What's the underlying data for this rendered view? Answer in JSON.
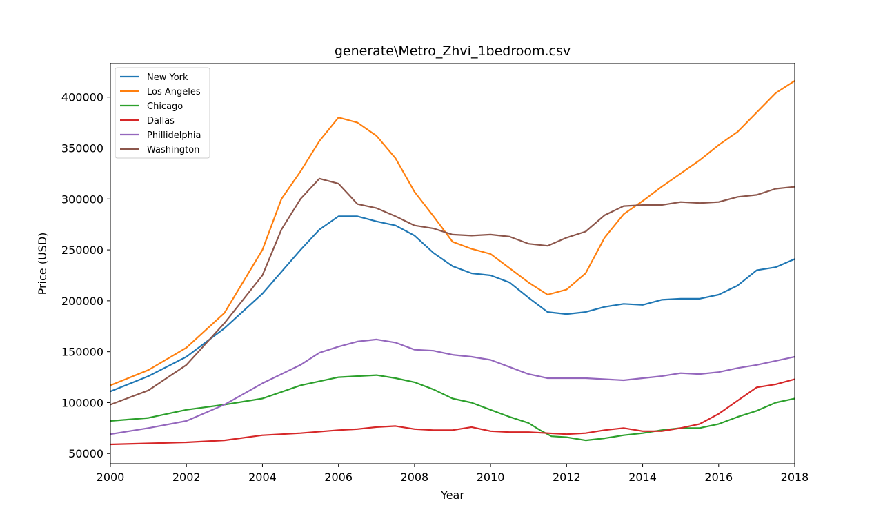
{
  "chart_data": {
    "type": "line",
    "title": "generate\\Metro_Zhvi_1bedroom.csv",
    "xlabel": "Year",
    "ylabel": "Price (USD)",
    "xlim": [
      2000,
      2018
    ],
    "ylim": [
      40000,
      433000
    ],
    "xticks": [
      "2000",
      "2002",
      "2004",
      "2006",
      "2008",
      "2010",
      "2012",
      "2014",
      "2016",
      "2018"
    ],
    "yticks": [
      "50000",
      "100000",
      "150000",
      "200000",
      "250000",
      "300000",
      "350000",
      "400000"
    ],
    "grid": false,
    "legend_position": "upper-left",
    "series": [
      {
        "name": "New York",
        "color": "#1f77b4",
        "points": [
          [
            2000,
            111000
          ],
          [
            2001,
            126000
          ],
          [
            2002,
            145000
          ],
          [
            2003,
            173000
          ],
          [
            2004,
            207000
          ],
          [
            2005,
            250000
          ],
          [
            2005.5,
            270000
          ],
          [
            2006,
            283000
          ],
          [
            2006.5,
            283000
          ],
          [
            2007,
            278000
          ],
          [
            2007.5,
            274000
          ],
          [
            2008,
            264000
          ],
          [
            2008.5,
            247000
          ],
          [
            2009,
            234000
          ],
          [
            2009.5,
            227000
          ],
          [
            2010,
            225000
          ],
          [
            2010.5,
            218000
          ],
          [
            2011,
            203000
          ],
          [
            2011.5,
            189000
          ],
          [
            2012,
            187000
          ],
          [
            2012.5,
            189000
          ],
          [
            2013,
            194000
          ],
          [
            2013.5,
            197000
          ],
          [
            2014,
            196000
          ],
          [
            2014.5,
            201000
          ],
          [
            2015,
            202000
          ],
          [
            2015.5,
            202000
          ],
          [
            2016,
            206000
          ],
          [
            2016.5,
            215000
          ],
          [
            2017,
            230000
          ],
          [
            2017.5,
            233000
          ],
          [
            2018,
            241000
          ]
        ]
      },
      {
        "name": "Los Angeles",
        "color": "#ff7f0e",
        "points": [
          [
            2000,
            117000
          ],
          [
            2001,
            132000
          ],
          [
            2002,
            154000
          ],
          [
            2003,
            188000
          ],
          [
            2004,
            250000
          ],
          [
            2004.5,
            300000
          ],
          [
            2005,
            327000
          ],
          [
            2005.5,
            357000
          ],
          [
            2006,
            380000
          ],
          [
            2006.5,
            375000
          ],
          [
            2007,
            362000
          ],
          [
            2007.5,
            340000
          ],
          [
            2008,
            307000
          ],
          [
            2008.5,
            283000
          ],
          [
            2009,
            258000
          ],
          [
            2009.5,
            251000
          ],
          [
            2010,
            246000
          ],
          [
            2010.5,
            232000
          ],
          [
            2011,
            218000
          ],
          [
            2011.5,
            206000
          ],
          [
            2012,
            211000
          ],
          [
            2012.5,
            227000
          ],
          [
            2013,
            262000
          ],
          [
            2013.5,
            285000
          ],
          [
            2014,
            298000
          ],
          [
            2014.5,
            312000
          ],
          [
            2015,
            325000
          ],
          [
            2015.5,
            338000
          ],
          [
            2016,
            353000
          ],
          [
            2016.5,
            366000
          ],
          [
            2017,
            385000
          ],
          [
            2017.5,
            404000
          ],
          [
            2018,
            416000
          ]
        ]
      },
      {
        "name": "Chicago",
        "color": "#2ca02c",
        "points": [
          [
            2000,
            82000
          ],
          [
            2001,
            85000
          ],
          [
            2002,
            93000
          ],
          [
            2003,
            98000
          ],
          [
            2004,
            104000
          ],
          [
            2005,
            117000
          ],
          [
            2006,
            125000
          ],
          [
            2007,
            127000
          ],
          [
            2007.5,
            124000
          ],
          [
            2008,
            120000
          ],
          [
            2008.5,
            113000
          ],
          [
            2009,
            104000
          ],
          [
            2009.5,
            100000
          ],
          [
            2010,
            93000
          ],
          [
            2010.5,
            86000
          ],
          [
            2011,
            80000
          ],
          [
            2011.3,
            73000
          ],
          [
            2011.6,
            67000
          ],
          [
            2012,
            66000
          ],
          [
            2012.5,
            63000
          ],
          [
            2013,
            65000
          ],
          [
            2013.5,
            68000
          ],
          [
            2014,
            70000
          ],
          [
            2014.5,
            73000
          ],
          [
            2015,
            75000
          ],
          [
            2015.5,
            75000
          ],
          [
            2016,
            79000
          ],
          [
            2016.5,
            86000
          ],
          [
            2017,
            92000
          ],
          [
            2017.5,
            100000
          ],
          [
            2018,
            104000
          ]
        ]
      },
      {
        "name": "Dallas",
        "color": "#d62728",
        "points": [
          [
            2000,
            59000
          ],
          [
            2001,
            60000
          ],
          [
            2002,
            61000
          ],
          [
            2003,
            63000
          ],
          [
            2004,
            68000
          ],
          [
            2005,
            70000
          ],
          [
            2006,
            73000
          ],
          [
            2006.5,
            74000
          ],
          [
            2007,
            76000
          ],
          [
            2007.5,
            77000
          ],
          [
            2008,
            74000
          ],
          [
            2008.5,
            73000
          ],
          [
            2009,
            73000
          ],
          [
            2009.5,
            76000
          ],
          [
            2010,
            72000
          ],
          [
            2010.5,
            71000
          ],
          [
            2011,
            71000
          ],
          [
            2011.5,
            70000
          ],
          [
            2012,
            69000
          ],
          [
            2012.5,
            70000
          ],
          [
            2013,
            73000
          ],
          [
            2013.5,
            75000
          ],
          [
            2014,
            72000
          ],
          [
            2014.5,
            72000
          ],
          [
            2015,
            75000
          ],
          [
            2015.5,
            79000
          ],
          [
            2016,
            89000
          ],
          [
            2016.5,
            102000
          ],
          [
            2017,
            115000
          ],
          [
            2017.5,
            118000
          ],
          [
            2018,
            123000
          ]
        ]
      },
      {
        "name": "Phillidelphia",
        "color": "#9467bd",
        "points": [
          [
            2000,
            69000
          ],
          [
            2001,
            75000
          ],
          [
            2002,
            82000
          ],
          [
            2003,
            98000
          ],
          [
            2004,
            119000
          ],
          [
            2005,
            137000
          ],
          [
            2005.5,
            149000
          ],
          [
            2006,
            155000
          ],
          [
            2006.5,
            160000
          ],
          [
            2007,
            162000
          ],
          [
            2007.5,
            159000
          ],
          [
            2008,
            152000
          ],
          [
            2008.5,
            151000
          ],
          [
            2009,
            147000
          ],
          [
            2009.5,
            145000
          ],
          [
            2010,
            142000
          ],
          [
            2010.5,
            135000
          ],
          [
            2011,
            128000
          ],
          [
            2011.5,
            124000
          ],
          [
            2012,
            124000
          ],
          [
            2012.5,
            124000
          ],
          [
            2013,
            123000
          ],
          [
            2013.5,
            122000
          ],
          [
            2014,
            124000
          ],
          [
            2014.5,
            126000
          ],
          [
            2015,
            129000
          ],
          [
            2015.5,
            128000
          ],
          [
            2016,
            130000
          ],
          [
            2016.5,
            134000
          ],
          [
            2017,
            137000
          ],
          [
            2017.5,
            141000
          ],
          [
            2018,
            145000
          ]
        ]
      },
      {
        "name": "Washington",
        "color": "#8c564b",
        "points": [
          [
            2000,
            98000
          ],
          [
            2001,
            112000
          ],
          [
            2002,
            137000
          ],
          [
            2003,
            178000
          ],
          [
            2004,
            225000
          ],
          [
            2004.5,
            270000
          ],
          [
            2005,
            300000
          ],
          [
            2005.5,
            320000
          ],
          [
            2006,
            315000
          ],
          [
            2006.5,
            295000
          ],
          [
            2007,
            291000
          ],
          [
            2007.5,
            283000
          ],
          [
            2008,
            274000
          ],
          [
            2008.5,
            271000
          ],
          [
            2009,
            265000
          ],
          [
            2009.5,
            264000
          ],
          [
            2010,
            265000
          ],
          [
            2010.5,
            263000
          ],
          [
            2011,
            256000
          ],
          [
            2011.5,
            254000
          ],
          [
            2012,
            262000
          ],
          [
            2012.5,
            268000
          ],
          [
            2013,
            284000
          ],
          [
            2013.5,
            293000
          ],
          [
            2014,
            294000
          ],
          [
            2014.5,
            294000
          ],
          [
            2015,
            297000
          ],
          [
            2015.5,
            296000
          ],
          [
            2016,
            297000
          ],
          [
            2016.5,
            302000
          ],
          [
            2017,
            304000
          ],
          [
            2017.5,
            310000
          ],
          [
            2018,
            312000
          ]
        ]
      }
    ]
  }
}
